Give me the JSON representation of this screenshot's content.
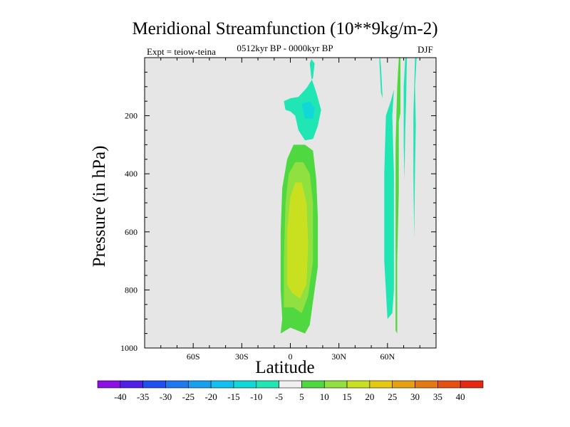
{
  "chart_data": {
    "type": "contour",
    "title": "Meridional Streamfunction (10**9kg/m-2)",
    "subtitle_left": "Expt = teiow-teina",
    "subtitle_center": "0512kyr BP - 0000kyr BP",
    "subtitle_right": "DJF",
    "xlabel": "Latitude",
    "ylabel": "Pressure (in hPa)",
    "xlim": [
      -90,
      90
    ],
    "ylim": [
      1000,
      0
    ],
    "x_ticks": [
      {
        "value": -60,
        "label": "60S"
      },
      {
        "value": -30,
        "label": "30S"
      },
      {
        "value": 0,
        "label": "0"
      },
      {
        "value": 30,
        "label": "30N"
      },
      {
        "value": 60,
        "label": "60N"
      }
    ],
    "y_ticks": [
      {
        "value": 200,
        "label": "200"
      },
      {
        "value": 400,
        "label": "400"
      },
      {
        "value": 600,
        "label": "600"
      },
      {
        "value": 800,
        "label": "800"
      },
      {
        "value": 1000,
        "label": "1000"
      }
    ],
    "levels": [
      -40,
      -35,
      -30,
      -25,
      -20,
      -15,
      -10,
      -5,
      5,
      10,
      15,
      20,
      25,
      30,
      35,
      40
    ],
    "colorbar_colors": [
      "#8c10e6",
      "#5020e6",
      "#2050f0",
      "#1e78f0",
      "#18a0f0",
      "#10c0f0",
      "#10d8d8",
      "#20e6b4",
      "#f0f0f0",
      "#50d840",
      "#90e040",
      "#c8e020",
      "#e6c810",
      "#e6a010",
      "#e67810",
      "#e65010",
      "#e62810"
    ],
    "regions": [
      {
        "name": "tropical-positive-cell-outer",
        "color": "#50d840",
        "points": [
          [
            -6,
            950
          ],
          [
            -5,
            900
          ],
          [
            -6,
            800
          ],
          [
            -6,
            600
          ],
          [
            -5,
            450
          ],
          [
            -2,
            350
          ],
          [
            2,
            300
          ],
          [
            9,
            300
          ],
          [
            14,
            320
          ],
          [
            16,
            420
          ],
          [
            17,
            550
          ],
          [
            17,
            720
          ],
          [
            14,
            840
          ],
          [
            12,
            920
          ],
          [
            9,
            950
          ],
          [
            0,
            930
          ]
        ]
      },
      {
        "name": "tropical-positive-cell-inner",
        "color": "#90e040",
        "points": [
          [
            -4,
            860
          ],
          [
            -4,
            700
          ],
          [
            -3,
            500
          ],
          [
            -1,
            400
          ],
          [
            3,
            360
          ],
          [
            8,
            360
          ],
          [
            12,
            400
          ],
          [
            14,
            500
          ],
          [
            14,
            700
          ],
          [
            11,
            820
          ],
          [
            7,
            880
          ],
          [
            2,
            860
          ]
        ]
      },
      {
        "name": "tropical-positive-cell-core",
        "color": "#c8e020",
        "points": [
          [
            -2,
            780
          ],
          [
            -2,
            600
          ],
          [
            0,
            480
          ],
          [
            3,
            430
          ],
          [
            7,
            430
          ],
          [
            10,
            500
          ],
          [
            11,
            640
          ],
          [
            10,
            780
          ],
          [
            6,
            830
          ],
          [
            1,
            810
          ]
        ]
      },
      {
        "name": "upper-negative-cell",
        "color": "#20e6b4",
        "points": [
          [
            -3,
            180
          ],
          [
            0,
            185
          ],
          [
            3,
            200
          ],
          [
            5,
            250
          ],
          [
            9,
            285
          ],
          [
            14,
            280
          ],
          [
            17,
            235
          ],
          [
            19,
            180
          ],
          [
            16,
            120
          ],
          [
            13,
            70
          ],
          [
            12,
            20
          ],
          [
            13,
            5
          ],
          [
            15,
            20
          ],
          [
            14,
            70
          ],
          [
            10,
            105
          ],
          [
            5,
            135
          ],
          [
            0,
            140
          ],
          [
            -4,
            150
          ]
        ]
      },
      {
        "name": "upper-negative-cell-core",
        "color": "#10d8d8",
        "points": [
          [
            7,
            160
          ],
          [
            12,
            150
          ],
          [
            15,
            175
          ],
          [
            14,
            210
          ],
          [
            9,
            210
          ]
        ]
      },
      {
        "name": "polar-negative-band-1",
        "color": "#20e6b4",
        "points": [
          [
            59,
            200
          ],
          [
            62,
            150
          ],
          [
            64,
            110
          ],
          [
            63,
            200
          ],
          [
            64,
            400
          ],
          [
            64,
            600
          ],
          [
            64,
            800
          ],
          [
            63,
            880
          ],
          [
            60,
            900
          ],
          [
            58,
            700
          ],
          [
            58,
            400
          ]
        ]
      },
      {
        "name": "polar-negative-band-2",
        "color": "#20e6b4",
        "points": [
          [
            57,
            140
          ],
          [
            56,
            120
          ],
          [
            55,
            15
          ],
          [
            55,
            0
          ],
          [
            55.5,
            0
          ],
          [
            56,
            30
          ]
        ]
      },
      {
        "name": "polar-positive-band-1",
        "color": "#50d840",
        "points": [
          [
            68,
            190
          ],
          [
            67,
            220
          ],
          [
            67,
            300
          ],
          [
            67,
            460
          ],
          [
            66,
            700
          ],
          [
            66,
            950
          ],
          [
            65,
            940
          ],
          [
            65,
            700
          ],
          [
            65,
            300
          ],
          [
            66,
            100
          ],
          [
            67,
            5
          ],
          [
            67,
            0
          ],
          [
            68,
            0
          ],
          [
            68,
            100
          ]
        ]
      },
      {
        "name": "polar-negative-band-3",
        "color": "#20e6b4",
        "points": [
          [
            71,
            0
          ],
          [
            72,
            0
          ],
          [
            71.5,
            150
          ],
          [
            71,
            250
          ],
          [
            70.5,
            420
          ],
          [
            70,
            300
          ],
          [
            70,
            100
          ]
        ]
      },
      {
        "name": "polar-negative-band-4",
        "color": "#20e6b4",
        "points": [
          [
            77,
            0
          ],
          [
            78,
            0
          ],
          [
            77,
            100
          ],
          [
            77.5,
            230
          ],
          [
            77,
            380
          ],
          [
            76.5,
            620
          ],
          [
            76,
            400
          ],
          [
            76,
            200
          ]
        ]
      }
    ]
  }
}
